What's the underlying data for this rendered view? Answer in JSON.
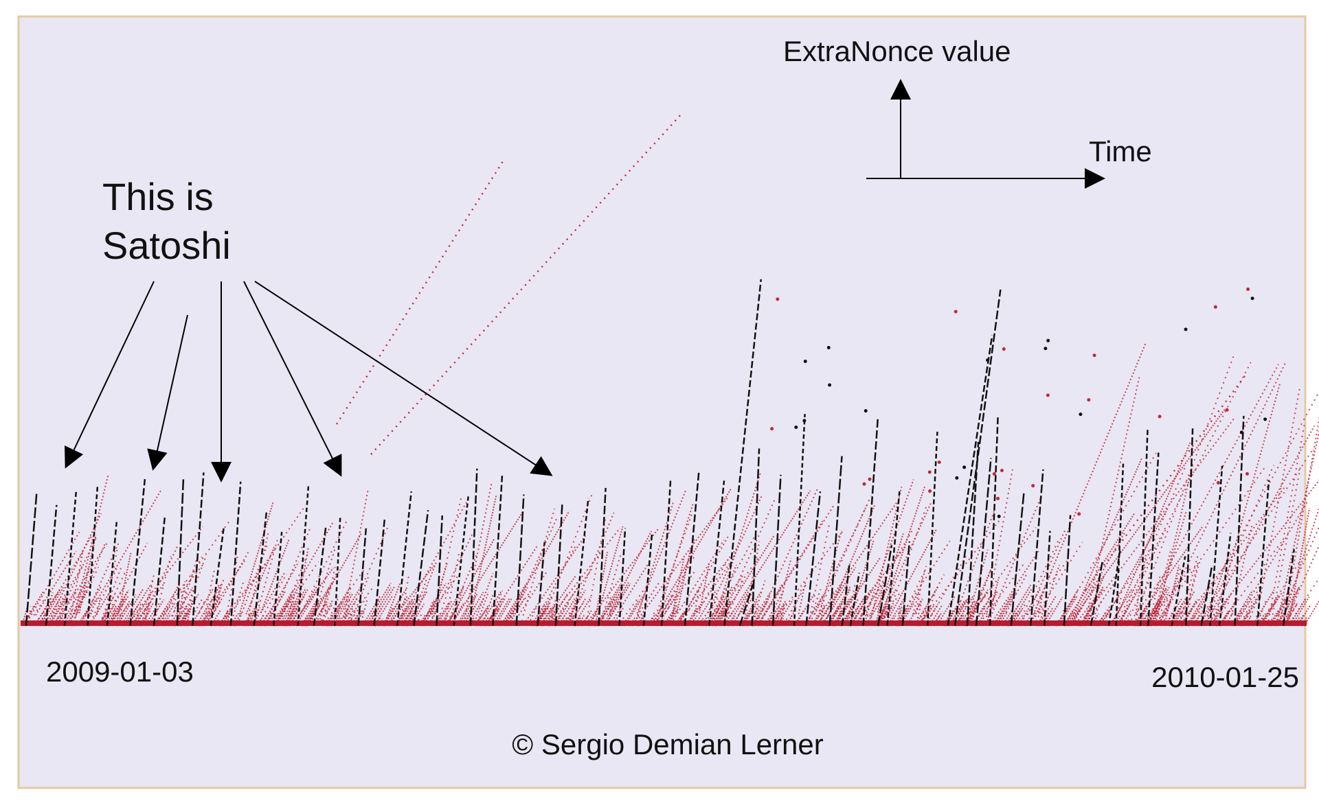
{
  "chart_data": {
    "type": "scatter",
    "y_label": "ExtraNonce value",
    "x_label": "Time",
    "annotation": [
      "This is",
      "Satoshi"
    ],
    "xlim": [
      "2009-01-03",
      "2010-01-25"
    ],
    "xticks": [
      "2009-01-03",
      "2010-01-25"
    ],
    "credit": "© Sergio Demian Lerner"
  }
}
